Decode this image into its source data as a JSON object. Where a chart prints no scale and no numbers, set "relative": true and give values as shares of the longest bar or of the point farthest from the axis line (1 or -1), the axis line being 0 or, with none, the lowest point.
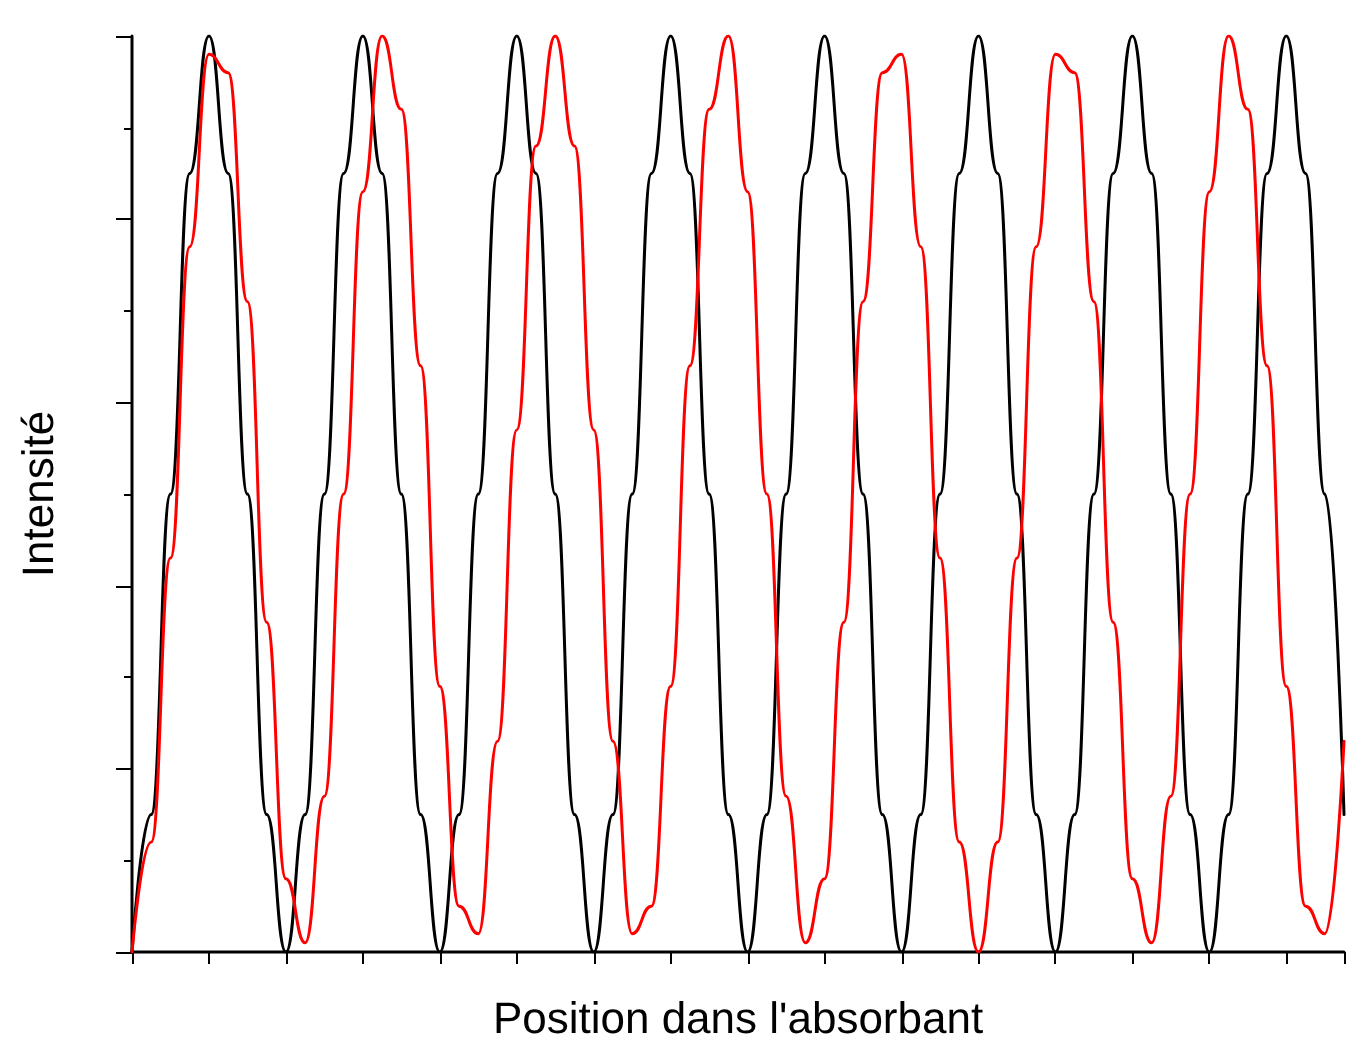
{
  "chart_data": {
    "type": "line",
    "relative": true,
    "xlabel": "Position dans l'absorbant",
    "ylabel": "Intensité",
    "marker": "none",
    "line_style": "solid",
    "grid": false,
    "categories": [
      null,
      null,
      null,
      null,
      null,
      null,
      null,
      null,
      null,
      null,
      null,
      null,
      null,
      null,
      null,
      null,
      null,
      null,
      null,
      null,
      null,
      null,
      null,
      null,
      null,
      null,
      null,
      null,
      null,
      null,
      null,
      null,
      null,
      null,
      null,
      null,
      null,
      null,
      null,
      null,
      null,
      null,
      null,
      null,
      null,
      null,
      null,
      null,
      null,
      null,
      null,
      null,
      null,
      null,
      null,
      null,
      null,
      null,
      null,
      null,
      null,
      null,
      null,
      null
    ],
    "series": [
      {
        "color": "#000000",
        "values": [
          0,
          0.15,
          0.5,
          0.85,
          1,
          0.85,
          0.5,
          0.15,
          0,
          0.15,
          0.5,
          0.85,
          1,
          0.85,
          0.5,
          0.15,
          0,
          0.15,
          0.5,
          0.85,
          1,
          0.85,
          0.5,
          0.15,
          0,
          0.15,
          0.5,
          0.85,
          1,
          0.85,
          0.5,
          0.15,
          0,
          0.15,
          0.5,
          0.85,
          1,
          0.85,
          0.5,
          0.15,
          0,
          0.15,
          0.5,
          0.85,
          1,
          0.85,
          0.5,
          0.15,
          0,
          0.15,
          0.5,
          0.85,
          1,
          0.85,
          0.5,
          0.15,
          0,
          0.15,
          0.5,
          0.85,
          1,
          0.85,
          0.5,
          0.15
        ]
      },
      {
        "color": "#ff0000",
        "values": [
          0,
          0.12,
          0.43,
          0.77,
          0.98,
          0.96,
          0.71,
          0.36,
          0.08,
          0.01,
          0.17,
          0.5,
          0.83,
          1,
          0.92,
          0.64,
          0.29,
          0.05,
          0.02,
          0.23,
          0.57,
          0.88,
          1,
          0.88,
          0.57,
          0.23,
          0.02,
          0.05,
          0.29,
          0.64,
          0.92,
          1,
          0.83,
          0.5,
          0.17,
          0.01,
          0.08,
          0.36,
          0.71,
          0.96,
          0.98,
          0.77,
          0.43,
          0.12,
          0,
          0.12,
          0.43,
          0.77,
          0.98,
          0.96,
          0.71,
          0.36,
          0.08,
          0.01,
          0.17,
          0.5,
          0.83,
          1,
          0.92,
          0.64,
          0.29,
          0.05,
          0.02,
          0.23
        ]
      }
    ]
  }
}
